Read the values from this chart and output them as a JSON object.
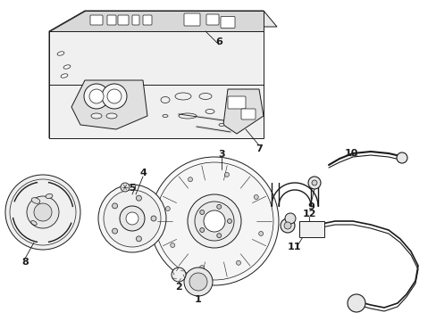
{
  "bg_color": "#ffffff",
  "fig_width": 4.89,
  "fig_height": 3.6,
  "dpi": 100,
  "line_color": "#1a1a1a",
  "lw": 0.7,
  "panel_fill": "#f0f0f0",
  "part_fill": "#ffffff"
}
